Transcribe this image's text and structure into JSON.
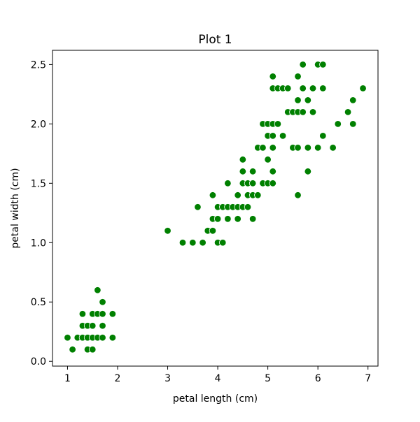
{
  "chart_data": {
    "type": "scatter",
    "title": "Plot 1",
    "xlabel": "petal length (cm)",
    "ylabel": "petal width (cm)",
    "xlim": [
      0.7,
      7.2
    ],
    "ylim": [
      -0.04,
      2.62
    ],
    "xticks": [
      1,
      2,
      3,
      4,
      5,
      6,
      7
    ],
    "xtick_labels": [
      "1",
      "2",
      "3",
      "4",
      "5",
      "6",
      "7"
    ],
    "yticks": [
      0.0,
      0.5,
      1.0,
      1.5,
      2.0,
      2.5
    ],
    "ytick_labels": [
      "0.0",
      "0.5",
      "1.0",
      "1.5",
      "2.0",
      "2.5"
    ],
    "grid": false,
    "marker_color": "#008000",
    "points": [
      [
        1.0,
        0.2
      ],
      [
        1.1,
        0.1
      ],
      [
        1.2,
        0.2
      ],
      [
        1.3,
        0.2
      ],
      [
        1.3,
        0.3
      ],
      [
        1.3,
        0.4
      ],
      [
        1.4,
        0.1
      ],
      [
        1.4,
        0.2
      ],
      [
        1.4,
        0.3
      ],
      [
        1.5,
        0.1
      ],
      [
        1.5,
        0.2
      ],
      [
        1.5,
        0.3
      ],
      [
        1.5,
        0.4
      ],
      [
        1.6,
        0.2
      ],
      [
        1.6,
        0.4
      ],
      [
        1.6,
        0.6
      ],
      [
        1.7,
        0.2
      ],
      [
        1.7,
        0.3
      ],
      [
        1.7,
        0.4
      ],
      [
        1.7,
        0.5
      ],
      [
        1.9,
        0.2
      ],
      [
        1.9,
        0.4
      ],
      [
        3.0,
        1.1
      ],
      [
        3.3,
        1.0
      ],
      [
        3.5,
        1.0
      ],
      [
        3.6,
        1.3
      ],
      [
        3.7,
        1.0
      ],
      [
        3.8,
        1.1
      ],
      [
        3.9,
        1.1
      ],
      [
        3.9,
        1.2
      ],
      [
        3.9,
        1.4
      ],
      [
        4.0,
        1.0
      ],
      [
        4.0,
        1.2
      ],
      [
        4.0,
        1.3
      ],
      [
        4.1,
        1.0
      ],
      [
        4.1,
        1.3
      ],
      [
        4.2,
        1.2
      ],
      [
        4.2,
        1.3
      ],
      [
        4.2,
        1.5
      ],
      [
        4.3,
        1.3
      ],
      [
        4.4,
        1.2
      ],
      [
        4.4,
        1.3
      ],
      [
        4.4,
        1.4
      ],
      [
        4.5,
        1.3
      ],
      [
        4.5,
        1.5
      ],
      [
        4.5,
        1.6
      ],
      [
        4.5,
        1.7
      ],
      [
        4.6,
        1.3
      ],
      [
        4.6,
        1.4
      ],
      [
        4.6,
        1.5
      ],
      [
        4.7,
        1.2
      ],
      [
        4.7,
        1.4
      ],
      [
        4.7,
        1.5
      ],
      [
        4.7,
        1.6
      ],
      [
        4.8,
        1.4
      ],
      [
        4.8,
        1.8
      ],
      [
        4.9,
        1.5
      ],
      [
        4.9,
        1.8
      ],
      [
        4.9,
        2.0
      ],
      [
        5.0,
        1.5
      ],
      [
        5.0,
        1.7
      ],
      [
        5.0,
        1.9
      ],
      [
        5.0,
        2.0
      ],
      [
        5.1,
        1.5
      ],
      [
        5.1,
        1.6
      ],
      [
        5.1,
        1.8
      ],
      [
        5.1,
        1.9
      ],
      [
        5.1,
        2.0
      ],
      [
        5.1,
        2.3
      ],
      [
        5.1,
        2.4
      ],
      [
        5.2,
        2.0
      ],
      [
        5.2,
        2.3
      ],
      [
        5.3,
        1.9
      ],
      [
        5.3,
        2.3
      ],
      [
        5.4,
        2.1
      ],
      [
        5.4,
        2.3
      ],
      [
        5.5,
        1.8
      ],
      [
        5.5,
        2.1
      ],
      [
        5.6,
        1.4
      ],
      [
        5.6,
        1.8
      ],
      [
        5.6,
        2.1
      ],
      [
        5.6,
        2.2
      ],
      [
        5.6,
        2.4
      ],
      [
        5.7,
        2.1
      ],
      [
        5.7,
        2.3
      ],
      [
        5.7,
        2.5
      ],
      [
        5.8,
        1.6
      ],
      [
        5.8,
        1.8
      ],
      [
        5.8,
        2.2
      ],
      [
        5.9,
        2.1
      ],
      [
        5.9,
        2.3
      ],
      [
        6.0,
        1.8
      ],
      [
        6.0,
        2.5
      ],
      [
        6.1,
        1.9
      ],
      [
        6.1,
        2.3
      ],
      [
        6.1,
        2.5
      ],
      [
        6.3,
        1.8
      ],
      [
        6.4,
        2.0
      ],
      [
        6.6,
        2.1
      ],
      [
        6.7,
        2.0
      ],
      [
        6.7,
        2.2
      ],
      [
        6.9,
        2.3
      ]
    ]
  }
}
